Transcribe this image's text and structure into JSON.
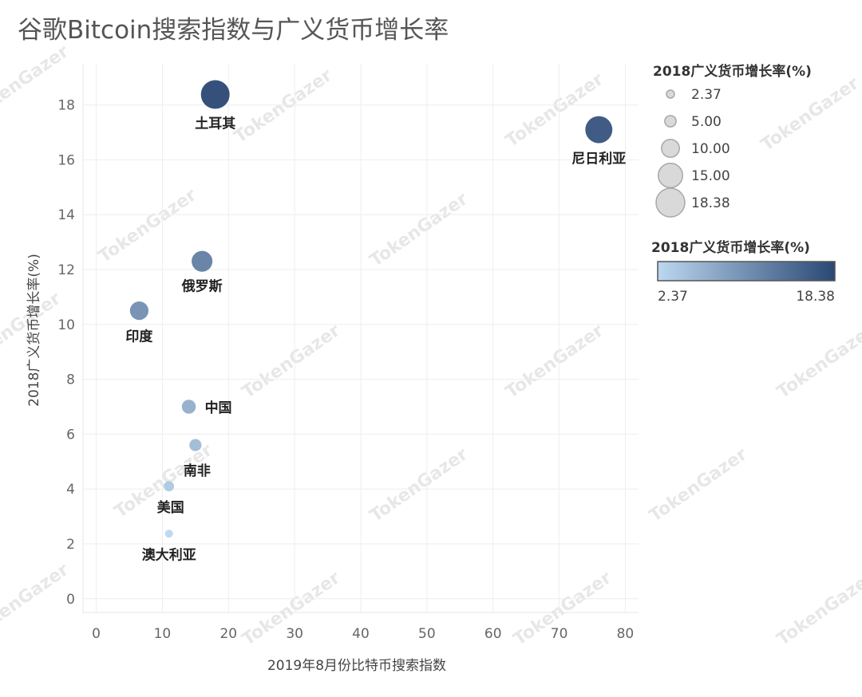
{
  "watermark": "TokenGazer",
  "chart_data": {
    "type": "scatter",
    "title": "谷歌Bitcoin搜索指数与广义货币增长率",
    "xlabel": "2019年8月份比特币搜索指数",
    "ylabel": "2018广义货币增长率(%)",
    "xlim": [
      -2,
      82
    ],
    "ylim": [
      -0.5,
      19.5
    ],
    "xticks": [
      "0",
      "10",
      "20",
      "30",
      "40",
      "50",
      "60",
      "70",
      "80"
    ],
    "yticks": [
      "0",
      "2",
      "4",
      "6",
      "8",
      "10",
      "12",
      "14",
      "16",
      "18"
    ],
    "grid": true,
    "points": [
      {
        "label": "土耳其",
        "x": 18,
        "y": 18.38,
        "size": 18.38,
        "color": 18.38
      },
      {
        "label": "尼日利亚",
        "x": 76,
        "y": 17.1,
        "size": 17.1,
        "color": 17.1
      },
      {
        "label": "俄罗斯",
        "x": 16,
        "y": 12.3,
        "size": 12.3,
        "color": 12.3
      },
      {
        "label": "印度",
        "x": 6.5,
        "y": 10.5,
        "size": 10.5,
        "color": 10.5
      },
      {
        "label": "中国",
        "x": 14,
        "y": 7.0,
        "size": 7.0,
        "color": 7.0
      },
      {
        "label": "南非",
        "x": 15,
        "y": 5.6,
        "size": 5.6,
        "color": 5.6
      },
      {
        "label": "美国",
        "x": 11,
        "y": 4.1,
        "size": 4.1,
        "color": 4.1
      },
      {
        "label": "澳大利亚",
        "x": 11,
        "y": 2.37,
        "size": 2.37,
        "color": 2.37
      }
    ],
    "size_legend": {
      "title": "2018广义货币增长率(%)",
      "items": [
        "2.37",
        "5.00",
        "10.00",
        "15.00",
        "18.38"
      ],
      "values": [
        2.37,
        5.0,
        10.0,
        15.0,
        18.38
      ]
    },
    "color_legend": {
      "title": "2018广义货币增长率(%)",
      "min_label": "2.37",
      "max_label": "18.38",
      "min": 2.37,
      "max": 18.38,
      "color_low": "#bcd7ef",
      "color_high": "#2a4874"
    },
    "legend_position": "right"
  }
}
